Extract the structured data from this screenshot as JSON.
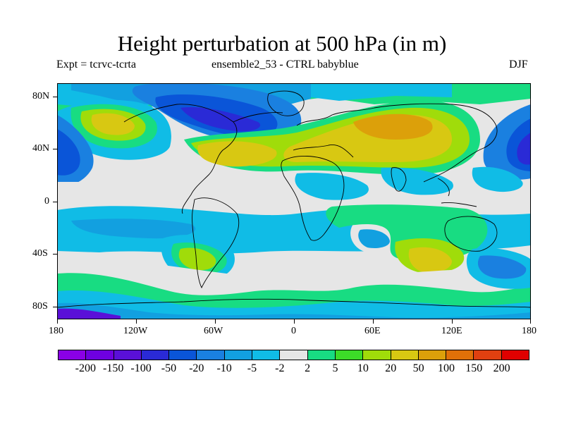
{
  "title": "Height perturbation at 500 hPa (in m)",
  "subtitle_left": "Expt = tcrvc-tcrta",
  "subtitle_center": "ensemble2_53 - CTRL babyblue",
  "subtitle_right": "DJF",
  "lat_ticks": [
    "80N",
    "40N",
    "0",
    "40S",
    "80S"
  ],
  "lon_ticks": [
    "180",
    "120W",
    "60W",
    "0",
    "60E",
    "120E",
    "180"
  ],
  "colorbar": {
    "colors": [
      "#8a00e6",
      "#6e00e0",
      "#5a10d8",
      "#2a2ad6",
      "#0a55d8",
      "#1a80e0",
      "#12a0e0",
      "#10bce6",
      "#e6e6e6",
      "#18dc82",
      "#3cdc28",
      "#a0dc0a",
      "#d8c812",
      "#dca00a",
      "#e07008",
      "#e04010",
      "#e00000"
    ],
    "labels": [
      "-200",
      "-150",
      "-100",
      "-50",
      "-20",
      "-10",
      "-5",
      "-2",
      "2",
      "5",
      "10",
      "20",
      "50",
      "100",
      "150",
      "200"
    ]
  }
}
